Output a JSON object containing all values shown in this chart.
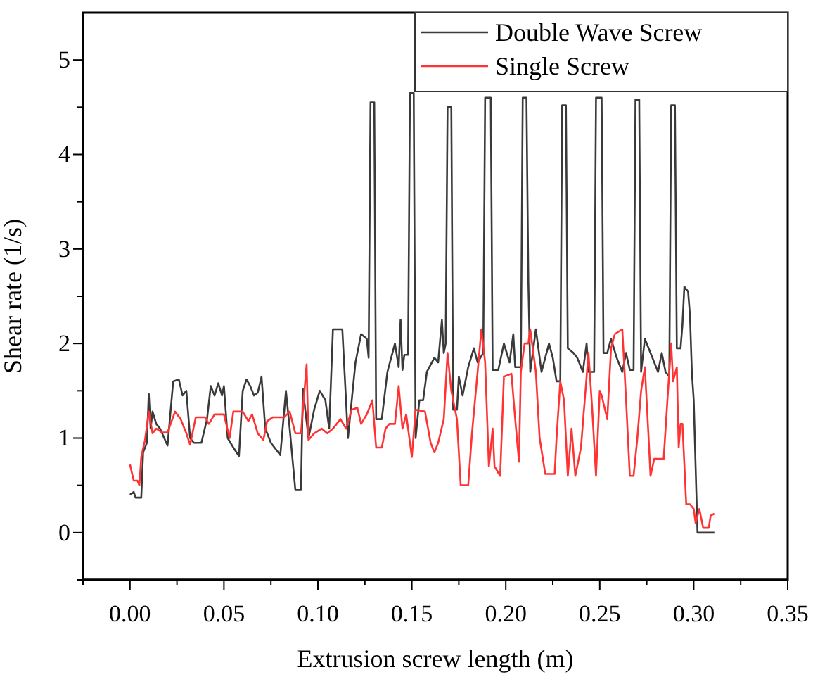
{
  "chart_data": {
    "type": "line",
    "xlabel": "Extrusion screw length (m)",
    "ylabel": "Shear rate (1/s)",
    "xlim": [
      -0.025,
      0.35
    ],
    "ylim": [
      -0.5,
      5.5
    ],
    "xticks": [
      {
        "value": -0.025,
        "label": null
      },
      {
        "value": 0,
        "label": "0.00"
      },
      {
        "value": 0.025,
        "label": null
      },
      {
        "value": 0.05,
        "label": "0.05"
      },
      {
        "value": 0.075,
        "label": null
      },
      {
        "value": 0.1,
        "label": "0.10"
      },
      {
        "value": 0.125,
        "label": null
      },
      {
        "value": 0.15,
        "label": "0.15"
      },
      {
        "value": 0.175,
        "label": null
      },
      {
        "value": 0.2,
        "label": "0.20"
      },
      {
        "value": 0.225,
        "label": null
      },
      {
        "value": 0.25,
        "label": "0.25"
      },
      {
        "value": 0.275,
        "label": null
      },
      {
        "value": 0.3,
        "label": "0.30"
      },
      {
        "value": 0.325,
        "label": null
      },
      {
        "value": 0.35,
        "label": "0.35"
      }
    ],
    "yticks": [
      {
        "value": -0.5,
        "label": null
      },
      0,
      {
        "value": 0.5,
        "label": null
      },
      1,
      {
        "value": 1.5,
        "label": null
      },
      2,
      {
        "value": 2.5,
        "label": null
      },
      3,
      {
        "value": 3.5,
        "label": null
      },
      4,
      {
        "value": 4.5,
        "label": null
      },
      5
    ],
    "grid": false,
    "legend": "top right",
    "marker": "none",
    "line_style": "solid",
    "series": [
      {
        "name": "Double Wave Screw",
        "color": "#3a3a3a",
        "x": [
          0,
          0.002,
          0.003,
          0.006,
          0.007,
          0.009,
          0.01,
          0.011,
          0.012,
          0.014,
          0.016,
          0.02,
          0.023,
          0.026,
          0.028,
          0.03,
          0.032,
          0.034,
          0.038,
          0.041,
          0.043,
          0.045,
          0.047,
          0.049,
          0.05,
          0.052,
          0.055,
          0.058,
          0.06,
          0.062,
          0.064,
          0.066,
          0.068,
          0.07,
          0.072,
          0.075,
          0.08,
          0.083,
          0.085,
          0.088,
          0.091,
          0.092,
          0.095,
          0.098,
          0.101,
          0.104,
          0.106,
          0.108,
          0.113,
          0.116,
          0.12,
          0.123,
          0.126,
          0.127,
          0.128,
          0.13,
          0.131,
          0.134,
          0.137,
          0.141,
          0.143,
          0.144,
          0.145,
          0.146,
          0.148,
          0.149,
          0.151,
          0.152,
          0.154,
          0.156,
          0.158,
          0.162,
          0.164,
          0.166,
          0.167,
          0.168,
          0.169,
          0.171,
          0.172,
          0.174,
          0.175,
          0.177,
          0.18,
          0.183,
          0.185,
          0.188,
          0.189,
          0.192,
          0.193,
          0.196,
          0.199,
          0.202,
          0.204,
          0.205,
          0.208,
          0.209,
          0.211,
          0.212,
          0.213,
          0.216,
          0.219,
          0.223,
          0.225,
          0.227,
          0.229,
          0.23,
          0.232,
          0.233,
          0.236,
          0.238,
          0.241,
          0.243,
          0.244,
          0.247,
          0.248,
          0.251,
          0.252,
          0.254,
          0.256,
          0.259,
          0.262,
          0.264,
          0.266,
          0.268,
          0.269,
          0.271,
          0.272,
          0.274,
          0.277,
          0.281,
          0.283,
          0.285,
          0.287,
          0.288,
          0.29,
          0.291,
          0.293,
          0.294,
          0.295,
          0.297,
          0.298,
          0.299,
          0.3,
          0.302,
          0.311
        ],
        "values": [
          0.4,
          0.43,
          0.37,
          0.37,
          0.85,
          0.95,
          1.47,
          1.1,
          1.28,
          1.15,
          1.1,
          0.92,
          1.6,
          1.62,
          1.45,
          1.5,
          1.0,
          0.95,
          0.95,
          1.2,
          1.55,
          1.45,
          1.58,
          1.45,
          1.55,
          1.0,
          0.9,
          0.81,
          1.5,
          1.62,
          1.55,
          1.45,
          1.48,
          1.65,
          1.1,
          0.95,
          0.82,
          1.5,
          1.1,
          0.45,
          0.45,
          1.52,
          1.0,
          1.3,
          1.5,
          1.4,
          1.1,
          2.15,
          2.15,
          1.0,
          1.8,
          2.1,
          2.05,
          1.85,
          4.55,
          4.55,
          1.2,
          1.2,
          1.7,
          2.0,
          1.75,
          2.25,
          1.72,
          1.88,
          1.88,
          4.65,
          4.65,
          1.0,
          1.4,
          1.4,
          1.7,
          1.85,
          1.8,
          2.25,
          1.9,
          2.0,
          4.5,
          4.5,
          1.3,
          1.3,
          1.65,
          1.45,
          1.75,
          1.95,
          1.8,
          1.9,
          4.6,
          4.6,
          1.72,
          1.72,
          2.0,
          1.8,
          2.1,
          1.75,
          1.75,
          4.6,
          4.6,
          2.65,
          1.7,
          2.15,
          1.7,
          2.0,
          1.85,
          1.6,
          1.6,
          4.52,
          4.52,
          1.95,
          1.9,
          1.85,
          1.7,
          2.0,
          1.7,
          1.7,
          4.6,
          4.6,
          1.9,
          1.9,
          2.05,
          1.85,
          1.7,
          1.9,
          1.72,
          1.72,
          4.58,
          4.58,
          1.7,
          2.05,
          1.9,
          1.7,
          1.9,
          1.7,
          1.65,
          4.52,
          4.52,
          1.95,
          1.95,
          2.2,
          2.6,
          2.55,
          2.3,
          1.7,
          1.4,
          0.0,
          0.0
        ]
      },
      {
        "name": "Single Screw",
        "color": "#ff3333",
        "x": [
          0,
          0.002,
          0.004,
          0.005,
          0.006,
          0.008,
          0.01,
          0.012,
          0.014,
          0.017,
          0.02,
          0.024,
          0.027,
          0.03,
          0.032,
          0.035,
          0.04,
          0.042,
          0.045,
          0.05,
          0.053,
          0.055,
          0.06,
          0.063,
          0.065,
          0.068,
          0.071,
          0.073,
          0.076,
          0.082,
          0.085,
          0.088,
          0.091,
          0.094,
          0.095,
          0.098,
          0.102,
          0.105,
          0.108,
          0.112,
          0.115,
          0.118,
          0.121,
          0.123,
          0.126,
          0.129,
          0.131,
          0.134,
          0.136,
          0.138,
          0.141,
          0.143,
          0.145,
          0.147,
          0.149,
          0.15,
          0.152,
          0.157,
          0.16,
          0.162,
          0.164,
          0.167,
          0.169,
          0.171,
          0.174,
          0.176,
          0.18,
          0.182,
          0.185,
          0.187,
          0.189,
          0.191,
          0.193,
          0.194,
          0.197,
          0.199,
          0.203,
          0.205,
          0.207,
          0.208,
          0.21,
          0.212,
          0.213,
          0.216,
          0.218,
          0.221,
          0.226,
          0.227,
          0.229,
          0.231,
          0.233,
          0.235,
          0.237,
          0.24,
          0.242,
          0.244,
          0.246,
          0.248,
          0.25,
          0.251,
          0.254,
          0.256,
          0.258,
          0.262,
          0.264,
          0.266,
          0.268,
          0.27,
          0.272,
          0.274,
          0.276,
          0.277,
          0.279,
          0.284,
          0.286,
          0.288,
          0.289,
          0.291,
          0.292,
          0.293,
          0.294,
          0.296,
          0.298,
          0.3,
          0.301,
          0.303,
          0.305,
          0.308,
          0.309,
          0.311
        ],
        "values": [
          0.72,
          0.55,
          0.55,
          0.5,
          0.8,
          0.98,
          1.28,
          1.05,
          1.1,
          1.06,
          1.06,
          1.28,
          1.2,
          1.05,
          0.93,
          1.22,
          1.22,
          1.15,
          1.25,
          1.25,
          1.0,
          1.28,
          1.28,
          1.18,
          1.25,
          1.05,
          0.98,
          1.18,
          1.22,
          1.22,
          1.28,
          1.05,
          1.05,
          1.78,
          0.98,
          1.05,
          1.1,
          1.05,
          1.1,
          1.2,
          1.1,
          1.3,
          1.32,
          1.15,
          1.25,
          1.4,
          0.9,
          0.9,
          1.1,
          1.15,
          1.15,
          1.55,
          1.1,
          1.25,
          0.95,
          0.8,
          1.3,
          1.28,
          0.95,
          0.85,
          0.95,
          1.2,
          1.9,
          1.5,
          1.2,
          0.5,
          0.5,
          1.05,
          1.7,
          2.15,
          1.8,
          0.7,
          1.1,
          0.7,
          0.6,
          1.65,
          1.68,
          1.2,
          0.75,
          1.7,
          2.0,
          2.0,
          2.15,
          1.7,
          1.0,
          0.62,
          0.62,
          1.0,
          1.6,
          1.4,
          0.6,
          1.1,
          0.6,
          0.9,
          1.4,
          1.9,
          1.3,
          0.6,
          1.5,
          1.45,
          1.2,
          1.95,
          2.1,
          2.15,
          1.4,
          0.6,
          0.6,
          1.0,
          1.5,
          1.75,
          1.0,
          0.6,
          0.78,
          0.78,
          1.4,
          2.0,
          1.6,
          1.75,
          0.9,
          1.15,
          1.15,
          0.3,
          0.3,
          0.25,
          0.1,
          0.25,
          0.05,
          0.05,
          0.18,
          0.2
        ]
      }
    ]
  }
}
